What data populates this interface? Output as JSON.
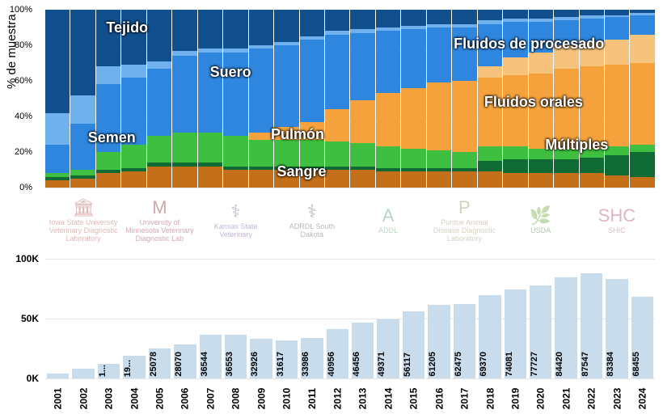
{
  "ylabel": "% de muestra",
  "stacked": {
    "type": "stacked-bar-100pct",
    "categories": [
      "2001",
      "2002",
      "2003",
      "2004",
      "2005",
      "2006",
      "2007",
      "2008",
      "2009",
      "2010",
      "2011",
      "2012",
      "2013",
      "2014",
      "2015",
      "2016",
      "2017",
      "2018",
      "2019",
      "2020",
      "2021",
      "2022",
      "2023",
      "2024"
    ],
    "series_order": [
      "sangre",
      "multiples",
      "pulmon",
      "fluidos_orales",
      "fluidos_procesado",
      "suero",
      "semen",
      "tejido"
    ],
    "series": {
      "sangre": {
        "label": "Sangre",
        "color": "#c46f1a",
        "values": [
          4,
          5,
          8,
          9,
          12,
          12,
          12,
          10,
          10,
          10,
          10,
          10,
          10,
          9,
          9,
          9,
          9,
          9,
          8,
          8,
          8,
          8,
          7,
          6
        ]
      },
      "multiples": {
        "label": "Múltiples",
        "color": "#0f6b33",
        "values": [
          2,
          2,
          2,
          2,
          2,
          2,
          2,
          2,
          2,
          2,
          2,
          2,
          2,
          2,
          2,
          2,
          2,
          6,
          8,
          8,
          8,
          9,
          11,
          14
        ]
      },
      "pulmon": {
        "label": "Pulmón",
        "color": "#3fbf3f",
        "values": [
          2,
          3,
          10,
          13,
          15,
          17,
          17,
          17,
          15,
          15,
          15,
          14,
          13,
          12,
          11,
          10,
          9,
          8,
          7,
          6,
          6,
          5,
          5,
          4
        ]
      },
      "fluidos_orales": {
        "label": "Fluidos orales",
        "color": "#f5a23d",
        "values": [
          0,
          0,
          0,
          0,
          0,
          0,
          0,
          0,
          4,
          7,
          10,
          18,
          24,
          30,
          34,
          38,
          40,
          39,
          40,
          42,
          45,
          46,
          46,
          46
        ]
      },
      "fluidos_procesado": {
        "label": "Fluidos de procesado",
        "color": "#f7c27b",
        "values": [
          0,
          0,
          0,
          0,
          0,
          0,
          0,
          0,
          0,
          0,
          0,
          0,
          0,
          0,
          0,
          0,
          0,
          6,
          10,
          12,
          13,
          14,
          14,
          16
        ]
      },
      "suero": {
        "label": "Suero",
        "color": "#2e86de",
        "values": [
          16,
          26,
          38,
          38,
          38,
          43,
          45,
          47,
          47,
          46,
          46,
          42,
          38,
          35,
          33,
          31,
          30,
          24,
          20,
          17,
          14,
          13,
          13,
          11
        ]
      },
      "semen": {
        "label": "Semen",
        "color": "#6fb1ec",
        "values": [
          18,
          16,
          10,
          7,
          4,
          3,
          2,
          2,
          2,
          2,
          2,
          2,
          2,
          2,
          2,
          2,
          2,
          2,
          2,
          2,
          2,
          2,
          1,
          1
        ]
      },
      "tejido": {
        "label": "Tejido",
        "color": "#124f8f",
        "values": [
          58,
          48,
          32,
          31,
          29,
          23,
          22,
          22,
          20,
          18,
          15,
          12,
          11,
          10,
          9,
          8,
          8,
          6,
          5,
          5,
          4,
          3,
          3,
          2
        ]
      }
    },
    "y_ticks": [
      0,
      20,
      40,
      60,
      80,
      100
    ],
    "overlay_labels": [
      {
        "key": "tejido",
        "text": "Tejido",
        "left_pct": 10,
        "top_pct": 10
      },
      {
        "key": "suero",
        "text": "Suero",
        "left_pct": 27,
        "top_pct": 35
      },
      {
        "key": "semen",
        "text": "Semen",
        "left_pct": 7,
        "top_pct": 72
      },
      {
        "key": "pulmon",
        "text": "Pulmón",
        "left_pct": 37,
        "top_pct": 70
      },
      {
        "key": "sangre",
        "text": "Sangre",
        "left_pct": 38,
        "top_pct": 91
      },
      {
        "key": "fluidos_procesado",
        "text": "Fluidos de procesado",
        "left_pct": 67,
        "top_pct": 19
      },
      {
        "key": "fluidos_orales",
        "text": "Fluidos orales",
        "left_pct": 72,
        "top_pct": 52
      },
      {
        "key": "multiples",
        "text": "Múltiples",
        "left_pct": 82,
        "top_pct": 76
      }
    ]
  },
  "logos": [
    {
      "name": "Iowa State University Veterinary Diagnostic Laboratory",
      "glyph": "🏛",
      "color": "#a03030"
    },
    {
      "name": "University of Minnesota Veterinary Diagnostic Lab",
      "glyph": "М",
      "color": "#7a0019"
    },
    {
      "name": "Kansas State Veterinary",
      "glyph": "⚕",
      "color": "#512888"
    },
    {
      "name": "ADRDL South Dakota",
      "glyph": "⚕",
      "color": "#333333"
    },
    {
      "name": "ADDL",
      "glyph": "A",
      "color": "#2f8f4f"
    },
    {
      "name": "Purdue Animal Disease Diagnostic Laboratory",
      "glyph": "P",
      "color": "#8c7a4d"
    },
    {
      "name": "USDA",
      "glyph": "🌿",
      "color": "#1a5e1a"
    },
    {
      "name": "SHIC",
      "glyph": "SHC",
      "color": "#a03050"
    }
  ],
  "totals": {
    "type": "bar",
    "categories": [
      "2001",
      "2002",
      "2003",
      "2004",
      "2005",
      "2006",
      "2007",
      "2008",
      "2009",
      "2010",
      "2011",
      "2012",
      "2013",
      "2014",
      "2015",
      "2016",
      "2017",
      "2018",
      "2019",
      "2020",
      "2021",
      "2022",
      "2023",
      "2024"
    ],
    "values": [
      4000,
      8000,
      12000,
      19000,
      25078,
      28070,
      36544,
      36553,
      32926,
      31617,
      33986,
      40956,
      46456,
      49371,
      56117,
      61205,
      62475,
      69370,
      74081,
      77727,
      84420,
      87547,
      83384,
      68455
    ],
    "display_values": [
      "",
      "",
      "1...",
      "19...",
      "25078",
      "28070",
      "36544",
      "36553",
      "32926",
      "31617",
      "33986",
      "40956",
      "46456",
      "49371",
      "56117",
      "61205",
      "62475",
      "69370",
      "74081",
      "77727",
      "84420",
      "87547",
      "83384",
      "68455"
    ],
    "bar_color": "#c9dcec",
    "y_ticks": [
      0,
      50000,
      100000
    ],
    "y_tick_labels": [
      "0K",
      "50K",
      "100K"
    ],
    "y_max": 100000
  }
}
